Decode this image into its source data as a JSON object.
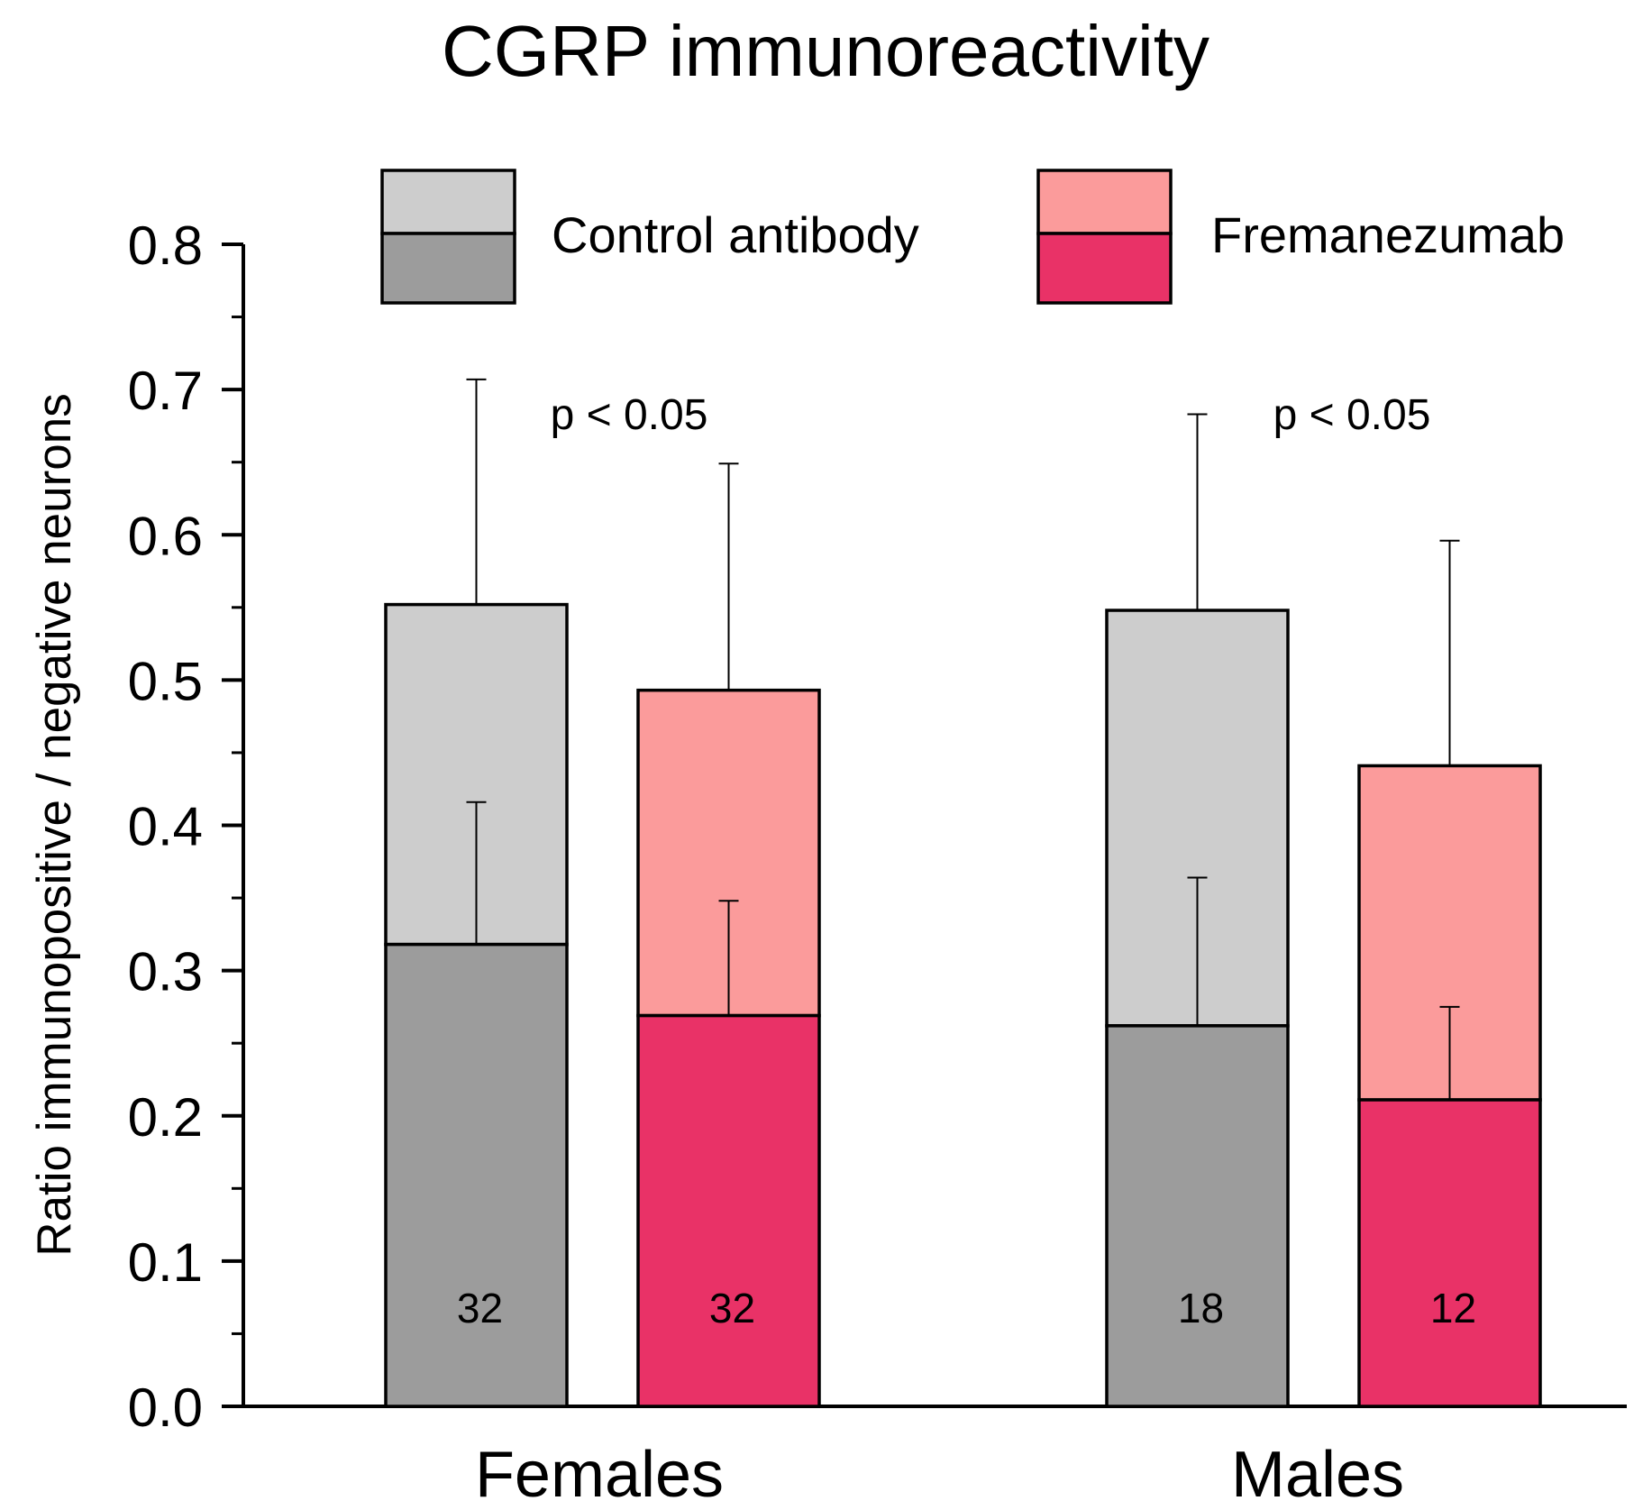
{
  "chart_data": {
    "type": "bar",
    "stacked": true,
    "title": "CGRP immunoreactivity",
    "xlabel": "",
    "ylabel": "Ratio immunopositive / negative neurons",
    "ylim": [
      0,
      0.8
    ],
    "yticks": [
      0.0,
      0.1,
      0.2,
      0.3,
      0.4,
      0.5,
      0.6,
      0.7,
      0.8
    ],
    "ytick_labels": [
      "0.0",
      "0.1",
      "0.2",
      "0.3",
      "0.4",
      "0.5",
      "0.6",
      "0.7",
      "0.8"
    ],
    "minor_tick_step": 0.05,
    "grid": false,
    "categories": [
      "Females",
      "Males"
    ],
    "colors": {
      "control_light": "#cdcdcd",
      "control_dark": "#9c9c9c",
      "fremanezumab_light": "#fb9b9b",
      "fremanezumab_dark": "#e93267",
      "outline": "#000000"
    },
    "legend": {
      "position": "top",
      "entries": [
        {
          "label": "Control antibody",
          "light_color": "#cdcdcd",
          "dark_color": "#9c9c9c"
        },
        {
          "label": "Fremanezumab",
          "light_color": "#fb9b9b",
          "dark_color": "#e93267"
        }
      ]
    },
    "series": [
      {
        "name": "Control antibody",
        "light_color": "#cdcdcd",
        "dark_color": "#9c9c9c",
        "total_values": [
          0.552,
          0.548
        ],
        "total_errors": [
          0.155,
          0.135
        ],
        "lower_values": [
          0.318,
          0.262
        ],
        "lower_errors": [
          0.098,
          0.102
        ],
        "n_labels": [
          "32",
          "18"
        ]
      },
      {
        "name": "Fremanezumab",
        "light_color": "#fb9b9b",
        "dark_color": "#e93267",
        "total_values": [
          0.493,
          0.441
        ],
        "total_errors": [
          0.156,
          0.155
        ],
        "lower_values": [
          0.269,
          0.211
        ],
        "lower_errors": [
          0.079,
          0.064
        ],
        "n_labels": [
          "32",
          "12"
        ]
      }
    ],
    "annotations": [
      "p < 0.05",
      "p < 0.05"
    ]
  }
}
